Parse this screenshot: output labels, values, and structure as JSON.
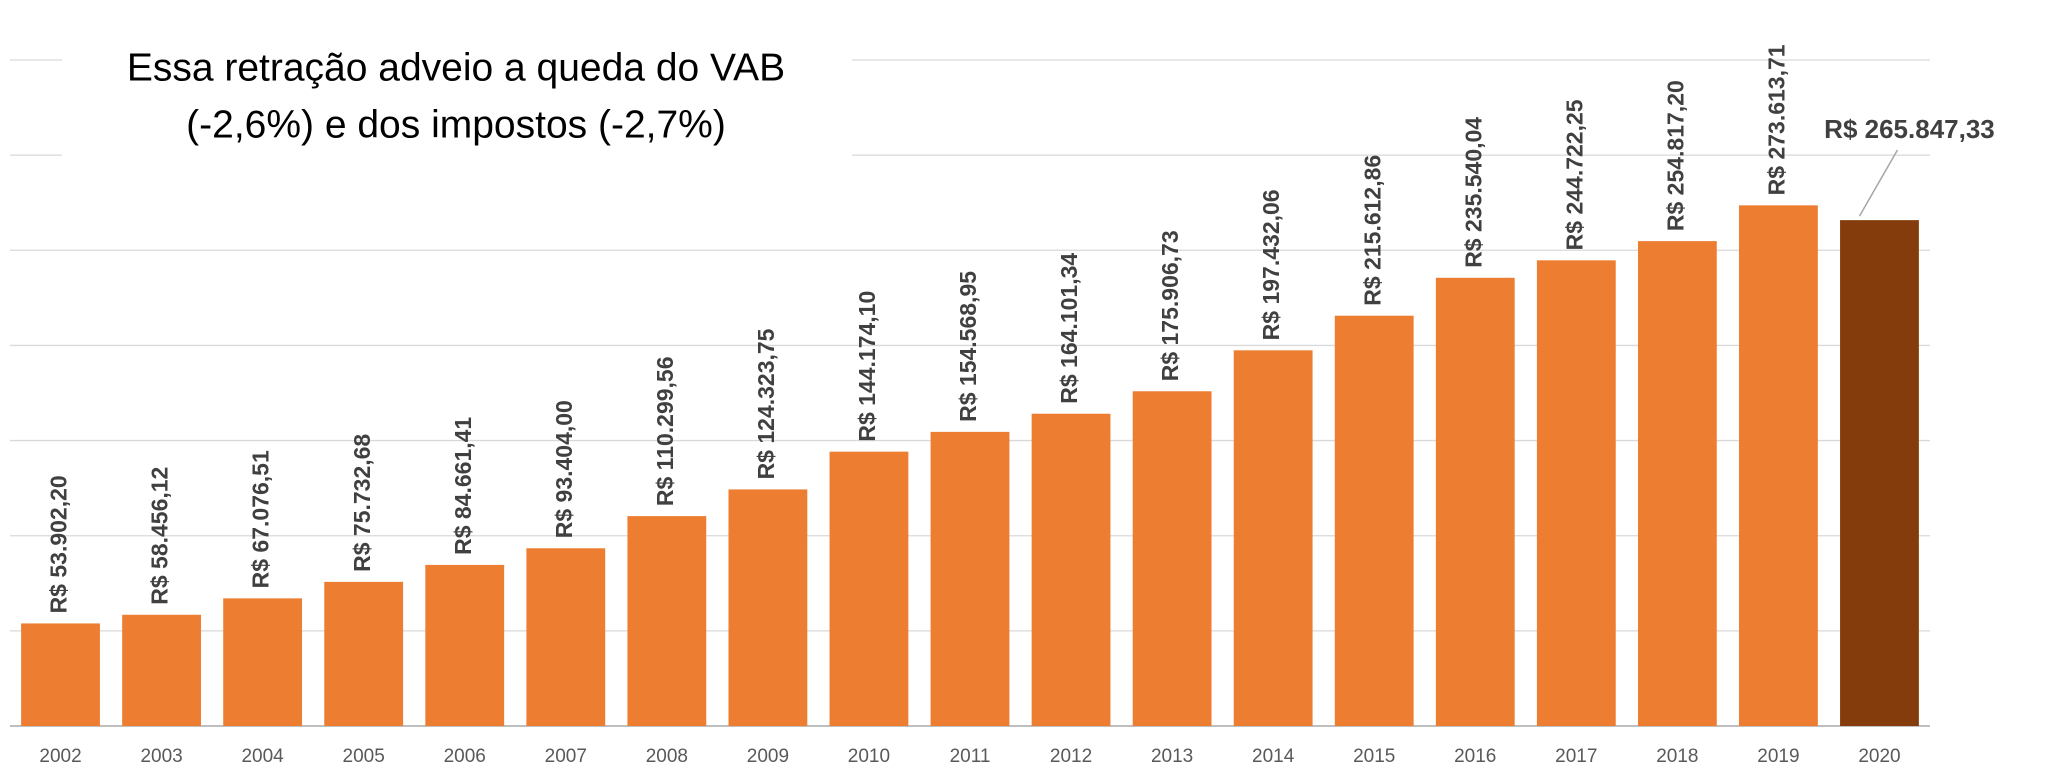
{
  "chart_data": {
    "type": "bar",
    "annotation": [
      "Essa retração adveio a queda do VAB",
      "(-2,6%) e dos impostos (-2,7%)"
    ],
    "categories": [
      "2002",
      "2003",
      "2004",
      "2005",
      "2006",
      "2007",
      "2008",
      "2009",
      "2010",
      "2011",
      "2012",
      "2013",
      "2014",
      "2015",
      "2016",
      "2017",
      "2018",
      "2019",
      "2020"
    ],
    "values": [
      53902.2,
      58456.12,
      67076.51,
      75732.68,
      84661.41,
      93404.0,
      110299.56,
      124323.75,
      144174.1,
      154568.95,
      164101.34,
      175906.73,
      197432.06,
      215612.86,
      235540.04,
      244722.25,
      254817.2,
      273613.71,
      265847.33
    ],
    "value_labels": [
      "R$ 53.902,20",
      "R$ 58.456,12",
      "R$ 67.076,51",
      "R$ 75.732,68",
      "R$ 84.661,41",
      "R$ 93.404,00",
      "R$ 110.299,56",
      "R$ 124.323,75",
      "R$ 144.174,10",
      "R$ 154.568,95",
      "R$ 164.101,34",
      "R$ 175.906,73",
      "R$ 197.432,06",
      "R$ 215.612,86",
      "R$ 235.540,04",
      "R$ 244.722,25",
      "R$ 254.817,20",
      "R$ 273.613,71",
      "R$ 265.847,33"
    ],
    "colors": [
      "#ed7d31",
      "#ed7d31",
      "#ed7d31",
      "#ed7d31",
      "#ed7d31",
      "#ed7d31",
      "#ed7d31",
      "#ed7d31",
      "#ed7d31",
      "#ed7d31",
      "#ed7d31",
      "#ed7d31",
      "#ed7d31",
      "#ed7d31",
      "#ed7d31",
      "#ed7d31",
      "#ed7d31",
      "#ed7d31",
      "#843c0c"
    ],
    "ylim": [
      0,
      350000
    ],
    "yticks": [
      0,
      50000,
      100000,
      150000,
      200000,
      250000,
      300000,
      350000
    ],
    "grid": true
  }
}
